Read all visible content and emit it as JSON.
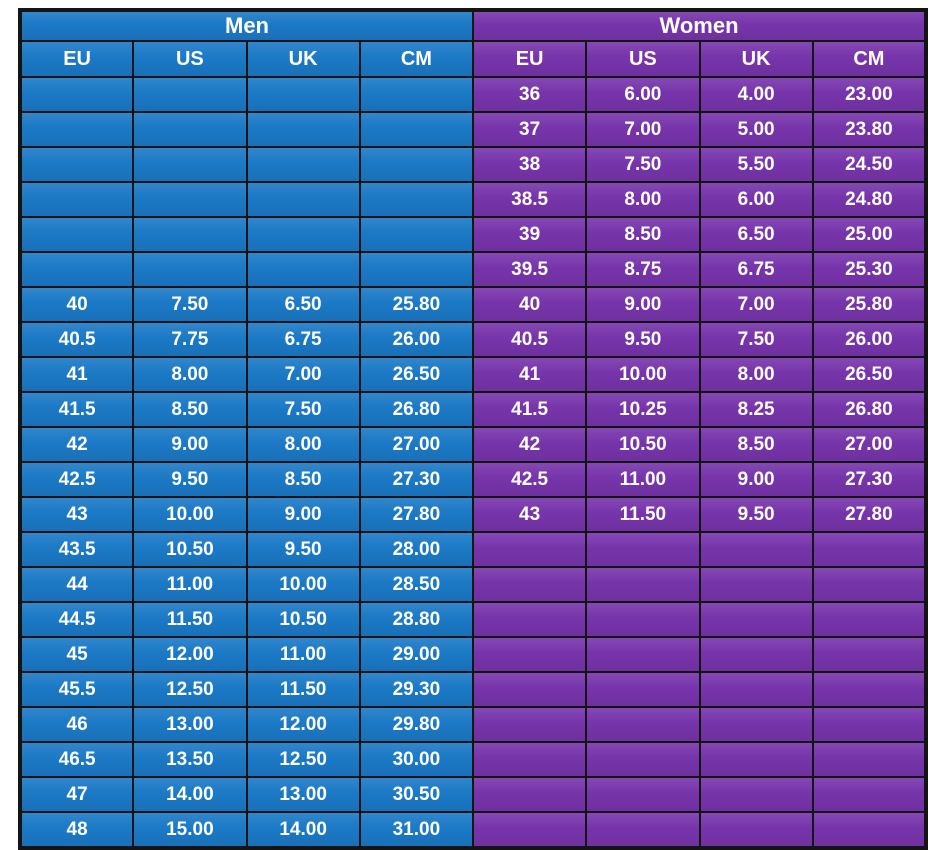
{
  "colors": {
    "men_fill": "#1b79c6",
    "women_fill": "#7734ab",
    "border": "#141414",
    "text": "#ffffff",
    "background": "#ffffff"
  },
  "chart_data": [
    {
      "type": "table",
      "title": "Men",
      "columns": [
        "EU",
        "US",
        "UK",
        "CM"
      ],
      "rows": [
        [
          "",
          "",
          "",
          ""
        ],
        [
          "",
          "",
          "",
          ""
        ],
        [
          "",
          "",
          "",
          ""
        ],
        [
          "",
          "",
          "",
          ""
        ],
        [
          "",
          "",
          "",
          ""
        ],
        [
          "",
          "",
          "",
          ""
        ],
        [
          "40",
          "7.50",
          "6.50",
          "25.80"
        ],
        [
          "40.5",
          "7.75",
          "6.75",
          "26.00"
        ],
        [
          "41",
          "8.00",
          "7.00",
          "26.50"
        ],
        [
          "41.5",
          "8.50",
          "7.50",
          "26.80"
        ],
        [
          "42",
          "9.00",
          "8.00",
          "27.00"
        ],
        [
          "42.5",
          "9.50",
          "8.50",
          "27.30"
        ],
        [
          "43",
          "10.00",
          "9.00",
          "27.80"
        ],
        [
          "43.5",
          "10.50",
          "9.50",
          "28.00"
        ],
        [
          "44",
          "11.00",
          "10.00",
          "28.50"
        ],
        [
          "44.5",
          "11.50",
          "10.50",
          "28.80"
        ],
        [
          "45",
          "12.00",
          "11.00",
          "29.00"
        ],
        [
          "45.5",
          "12.50",
          "11.50",
          "29.30"
        ],
        [
          "46",
          "13.00",
          "12.00",
          "29.80"
        ],
        [
          "46.5",
          "13.50",
          "12.50",
          "30.00"
        ],
        [
          "47",
          "14.00",
          "13.00",
          "30.50"
        ],
        [
          "48",
          "15.00",
          "14.00",
          "31.00"
        ]
      ]
    },
    {
      "type": "table",
      "title": "Women",
      "columns": [
        "EU",
        "US",
        "UK",
        "CM"
      ],
      "rows": [
        [
          "36",
          "6.00",
          "4.00",
          "23.00"
        ],
        [
          "37",
          "7.00",
          "5.00",
          "23.80"
        ],
        [
          "38",
          "7.50",
          "5.50",
          "24.50"
        ],
        [
          "38.5",
          "8.00",
          "6.00",
          "24.80"
        ],
        [
          "39",
          "8.50",
          "6.50",
          "25.00"
        ],
        [
          "39.5",
          "8.75",
          "6.75",
          "25.30"
        ],
        [
          "40",
          "9.00",
          "7.00",
          "25.80"
        ],
        [
          "40.5",
          "9.50",
          "7.50",
          "26.00"
        ],
        [
          "41",
          "10.00",
          "8.00",
          "26.50"
        ],
        [
          "41.5",
          "10.25",
          "8.25",
          "26.80"
        ],
        [
          "42",
          "10.50",
          "8.50",
          "27.00"
        ],
        [
          "42.5",
          "11.00",
          "9.00",
          "27.30"
        ],
        [
          "43",
          "11.50",
          "9.50",
          "27.80"
        ],
        [
          "",
          "",
          "",
          ""
        ],
        [
          "",
          "",
          "",
          ""
        ],
        [
          "",
          "",
          "",
          ""
        ],
        [
          "",
          "",
          "",
          ""
        ],
        [
          "",
          "",
          "",
          ""
        ],
        [
          "",
          "",
          "",
          ""
        ],
        [
          "",
          "",
          "",
          ""
        ],
        [
          "",
          "",
          "",
          ""
        ],
        [
          "",
          "",
          "",
          ""
        ]
      ]
    }
  ]
}
